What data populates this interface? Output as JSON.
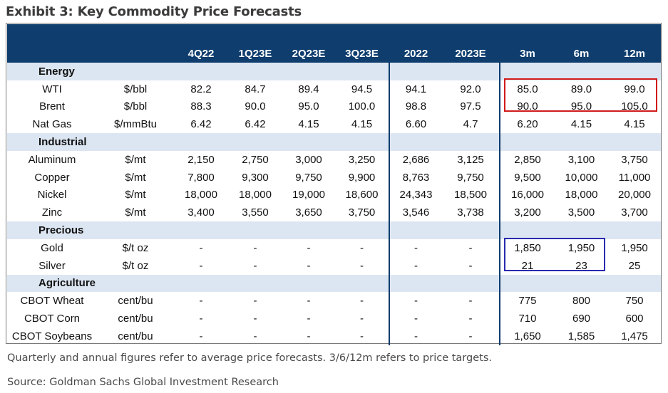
{
  "title": "Exhibit 3: Key Commodity Price Forecasts",
  "columns": [
    "4Q22",
    "1Q23E",
    "2Q23E",
    "3Q23E",
    "2022",
    "2023E",
    "3m",
    "6m",
    "12m"
  ],
  "sections": [
    {
      "name": "Energy",
      "rows": [
        {
          "name": "WTI",
          "unit": "$/bbl",
          "values": [
            "82.2",
            "84.7",
            "89.4",
            "94.5",
            "94.1",
            "92.0",
            "85.0",
            "89.0",
            "99.0"
          ]
        },
        {
          "name": "Brent",
          "unit": "$/bbl",
          "values": [
            "88.3",
            "90.0",
            "95.0",
            "100.0",
            "98.8",
            "97.5",
            "90.0",
            "95.0",
            "105.0"
          ]
        },
        {
          "name": "Nat Gas",
          "unit": "$/mmBtu",
          "values": [
            "6.42",
            "6.42",
            "4.15",
            "4.15",
            "6.60",
            "4.7",
            "6.20",
            "4.15",
            "4.15"
          ]
        }
      ]
    },
    {
      "name": "Industrial",
      "rows": [
        {
          "name": "Aluminum",
          "unit": "$/mt",
          "values": [
            "2,150",
            "2,750",
            "3,000",
            "3,250",
            "2,686",
            "3,125",
            "2,850",
            "3,100",
            "3,750"
          ]
        },
        {
          "name": "Copper",
          "unit": "$/mt",
          "values": [
            "7,800",
            "9,300",
            "9,750",
            "9,900",
            "8,763",
            "9,750",
            "9,500",
            "10,000",
            "11,000"
          ]
        },
        {
          "name": "Nickel",
          "unit": "$/mt",
          "values": [
            "18,000",
            "18,000",
            "19,000",
            "18,600",
            "24,343",
            "18,500",
            "16,000",
            "18,000",
            "20,000"
          ]
        },
        {
          "name": "Zinc",
          "unit": "$/mt",
          "values": [
            "3,400",
            "3,550",
            "3,650",
            "3,750",
            "3,546",
            "3,738",
            "3,200",
            "3,500",
            "3,700"
          ]
        }
      ]
    },
    {
      "name": "Precious",
      "rows": [
        {
          "name": "Gold",
          "unit": "$/t oz",
          "values": [
            "-",
            "-",
            "-",
            "-",
            "-",
            "-",
            "1,850",
            "1,950",
            "1,950"
          ]
        },
        {
          "name": "Silver",
          "unit": "$/t oz",
          "values": [
            "-",
            "-",
            "-",
            "-",
            "-",
            "-",
            "21",
            "23",
            "25"
          ]
        }
      ]
    },
    {
      "name": "Agriculture",
      "rows": [
        {
          "name": "CBOT Wheat",
          "unit": "cent/bu",
          "values": [
            "-",
            "-",
            "-",
            "-",
            "-",
            "-",
            "775",
            "800",
            "750"
          ]
        },
        {
          "name": "CBOT Corn",
          "unit": "cent/bu",
          "values": [
            "-",
            "-",
            "-",
            "-",
            "-",
            "-",
            "710",
            "690",
            "600"
          ]
        },
        {
          "name": "CBOT Soybeans",
          "unit": "cent/bu",
          "values": [
            "-",
            "-",
            "-",
            "-",
            "-",
            "-",
            "1,650",
            "1,585",
            "1,475"
          ]
        }
      ]
    }
  ],
  "footnote": "Quarterly and annual figures refer to average price forecasts. 3/6/12m refers to price targets.",
  "source": "Source: Goldman Sachs Global Investment Research",
  "colors": {
    "header_bg": "#0e3d6e",
    "section_bg": "#dce6f2",
    "highlight_red": "#d11a1a",
    "highlight_blue": "#2a2ab0"
  }
}
